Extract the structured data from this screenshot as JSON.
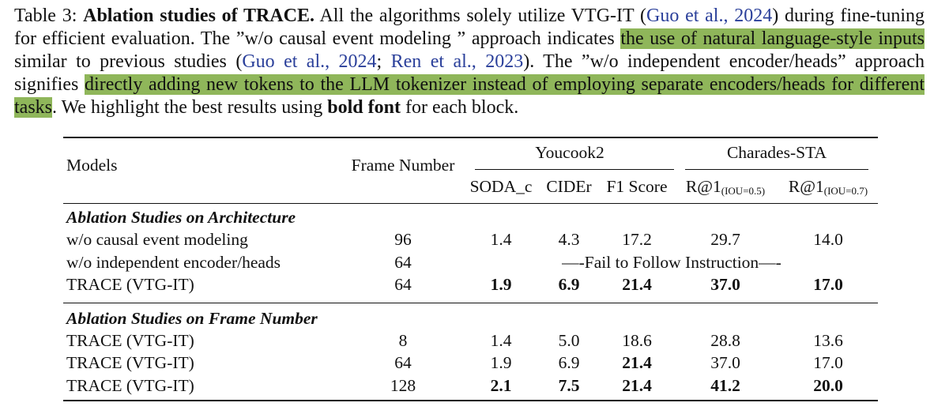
{
  "caption": {
    "label": "Table 3:",
    "title": "Ablation studies of TRACE.",
    "s1a": "All the algorithms solely utilize VTG-IT (",
    "cite1": "Guo et al., 2024",
    "s1b": ") during fine-tuning for efficient evaluation. The ”w/o causal event modeling ” approach indicates",
    "hl1": "the use of natural language-style inputs",
    "s2a": "similar to previous studies (",
    "cite2": "Guo et al., 2024",
    "cite_sep": ";",
    "cite3": "Ren et al., 2023",
    "s2b": "). The ”w/o independent encoder/heads” approach signifies",
    "hl2": "directly adding new tokens to the LLM tokenizer instead of employing separate encoders/heads for different tasks",
    "s3a": ". We highlight the best results using",
    "bold_phrase": "bold font",
    "s3b": "for each block."
  },
  "table": {
    "headers": {
      "models": "Models",
      "frame_number": "Frame Number",
      "group1": "Youcook2",
      "group2": "Charades-STA",
      "soda": "SODA_c",
      "cider": "CIDEr",
      "f1": "F1 Score",
      "r05": "R@1",
      "r05_sub": "(IOU=0.5)",
      "r07": "R@1",
      "r07_sub": "(IOU=0.7)"
    },
    "sections": [
      {
        "title": "Ablation Studies on Architecture",
        "rows": [
          {
            "model": "w/o causal event modeling",
            "frames": "96",
            "soda": "1.4",
            "cider": "4.3",
            "f1": "17.2",
            "r05": "29.7",
            "r07": "14.0"
          },
          {
            "model": "w/o independent encoder/heads",
            "frames": "64",
            "note": "—-Fail to Follow Instruction—-"
          },
          {
            "model": "TRACE (VTG-IT)",
            "frames": "64",
            "soda": "1.9",
            "cider": "6.9",
            "f1": "21.4",
            "r05": "37.0",
            "r07": "17.0"
          }
        ]
      },
      {
        "title": "Ablation Studies on Frame Number",
        "rows": [
          {
            "model": "TRACE (VTG-IT)",
            "frames": "8",
            "soda": "1.4",
            "cider": "5.0",
            "f1": "18.6",
            "r05": "28.8",
            "r07": "13.6"
          },
          {
            "model": "TRACE (VTG-IT)",
            "frames": "64",
            "soda": "1.9",
            "cider": "6.9",
            "f1": "21.4",
            "r05": "37.0",
            "r07": "17.0"
          },
          {
            "model": "TRACE (VTG-IT)",
            "frames": "128",
            "soda": "2.1",
            "cider": "7.5",
            "f1": "21.4",
            "r05": "41.2",
            "r07": "20.0"
          }
        ]
      }
    ]
  }
}
